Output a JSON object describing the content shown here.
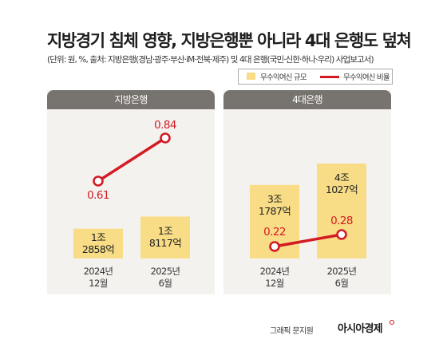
{
  "title": "지방경기 침체 영향, 지방은행뿐 아니라 4대 은행도 덮쳐",
  "subtitle": "(단위: 원, %, 출처: 지방은행(경남·광주·부산·iM·전북·제주) 및 4대 은행(국민·신한·하나·우리) 사업보고서)",
  "legend": {
    "bar_label": "무수익여신 규모",
    "line_label": "무수익여신 비율"
  },
  "colors": {
    "bar": "#f8dc86",
    "line": "#d31b24",
    "panel_bg": "#f4f2ef",
    "panel_header": "#77736e"
  },
  "chart_data": [
    {
      "type": "bar",
      "title": "지방은행",
      "categories": [
        "2024년 12월",
        "2025년 6월"
      ],
      "x_labels": [
        [
          "2024년",
          "12월"
        ],
        [
          "2025년",
          "6월"
        ]
      ],
      "bar_series": {
        "name": "무수익여신 규모",
        "values": [
          12858,
          18117
        ],
        "unit": "억 원",
        "labels": [
          [
            "1조",
            "2858억"
          ],
          [
            "1조",
            "8117억"
          ]
        ]
      },
      "line_series": {
        "name": "무수익여신 비율",
        "values": [
          0.61,
          0.84
        ],
        "unit": "%",
        "labels": [
          "0.61",
          "0.84"
        ]
      }
    },
    {
      "type": "bar",
      "title": "4대은행",
      "categories": [
        "2024년 12월",
        "2025년 6월"
      ],
      "x_labels": [
        [
          "2024년",
          "12월"
        ],
        [
          "2025년",
          "6월"
        ]
      ],
      "bar_series": {
        "name": "무수익여신 규모",
        "values": [
          31787,
          41027
        ],
        "unit": "억 원",
        "labels": [
          [
            "3조",
            "1787억"
          ],
          [
            "4조",
            "1027억"
          ]
        ]
      },
      "line_series": {
        "name": "무수익여신 비율",
        "values": [
          0.22,
          0.28
        ],
        "unit": "%",
        "labels": [
          "0.22",
          "0.28"
        ]
      }
    }
  ],
  "credit": "그래픽 문지원",
  "logo": "아시아경제"
}
